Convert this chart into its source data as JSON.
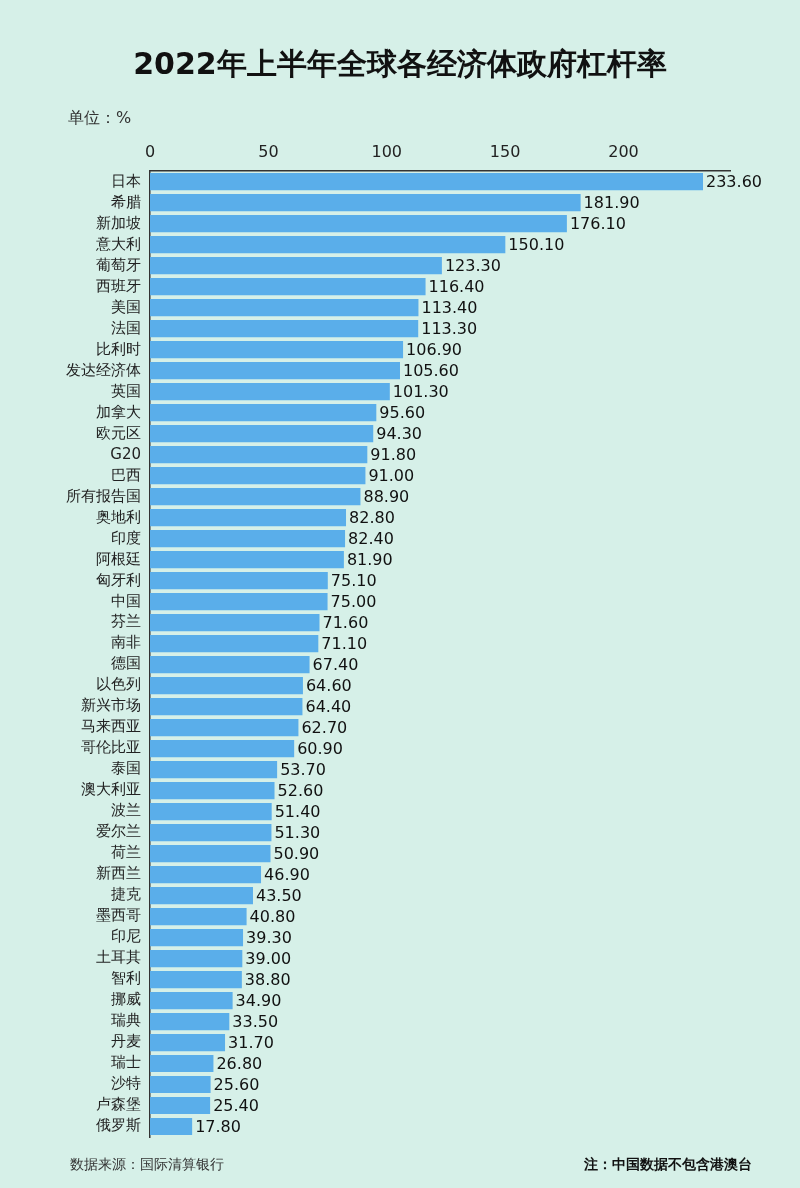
{
  "chart_data": {
    "type": "bar",
    "orientation": "horizontal",
    "title": "2022年上半年全球各经济体政府杠杆率",
    "xlabel": "单位：%",
    "categories": [
      "日本",
      "希腊",
      "新加坡",
      "意大利",
      "葡萄牙",
      "西班牙",
      "美国",
      "法国",
      "比利时",
      "发达经济体",
      "英国",
      "加拿大",
      "欧元区",
      "G20",
      "巴西",
      "所有报告国",
      "奥地利",
      "印度",
      "阿根廷",
      "匈牙利",
      "中国",
      "芬兰",
      "南非",
      "德国",
      "以色列",
      "新兴市场",
      "马来西亚",
      "哥伦比亚",
      "泰国",
      "澳大利亚",
      "波兰",
      "爱尔兰",
      "荷兰",
      "新西兰",
      "捷克",
      "墨西哥",
      "印尼",
      "土耳其",
      "智利",
      "挪威",
      "瑞典",
      "丹麦",
      "瑞士",
      "沙特",
      "卢森堡",
      "俄罗斯"
    ],
    "values": [
      233.6,
      181.9,
      176.1,
      150.1,
      123.3,
      116.4,
      113.4,
      113.3,
      106.9,
      105.6,
      101.3,
      95.6,
      94.3,
      91.8,
      91.0,
      88.9,
      82.8,
      82.4,
      81.9,
      75.1,
      75.0,
      71.6,
      71.1,
      67.4,
      64.6,
      64.4,
      62.7,
      60.9,
      53.7,
      52.6,
      51.4,
      51.3,
      50.9,
      46.9,
      43.5,
      40.8,
      39.3,
      39.0,
      38.8,
      34.9,
      33.5,
      31.7,
      26.8,
      25.6,
      25.4,
      17.8
    ],
    "value_labels": [
      "233.60",
      "181.90",
      "176.10",
      "150.10",
      "123.30",
      "116.40",
      "113.40",
      "113.30",
      "106.90",
      "105.60",
      "101.30",
      "95.60",
      "94.30",
      "91.80",
      "91.00",
      "88.90",
      "82.80",
      "82.40",
      "81.90",
      "75.10",
      "75.00",
      "71.60",
      "71.10",
      "67.40",
      "64.60",
      "64.40",
      "62.70",
      "60.90",
      "53.70",
      "52.60",
      "51.40",
      "51.30",
      "50.90",
      "46.90",
      "43.50",
      "40.80",
      "39.30",
      "39.00",
      "38.80",
      "34.90",
      "33.50",
      "31.70",
      "26.80",
      "25.60",
      "25.40",
      "17.80"
    ],
    "color": "#5aaeea",
    "xlim": [
      0,
      245
    ],
    "xticks": [
      0,
      50,
      100,
      150,
      200
    ],
    "grid": false,
    "legend": false,
    "annotations": [
      "数据来源：国际清算银行",
      "注：中国数据不包含港澳台"
    ]
  }
}
